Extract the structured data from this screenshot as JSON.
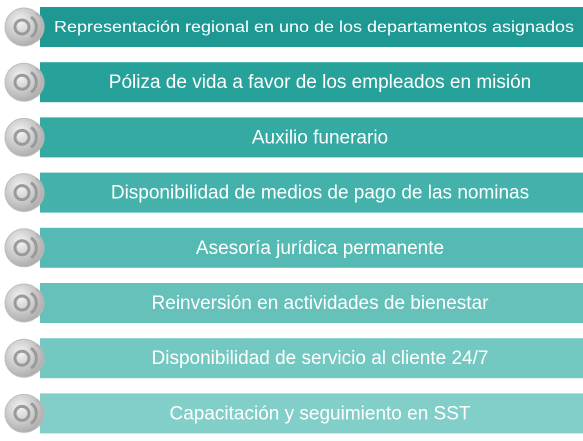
{
  "items": [
    "Representación regional en uno de los departamentos asignados",
    "Póliza de vida a favor de los empleados en misión",
    "Auxilio funerario",
    "Disponibilidad de medios de pago de las nominas",
    "Asesoría jurídica permanente",
    "Reinversión en actividades de bienestar",
    "Disponibilidad de servicio al cliente  24/7",
    "Capacitación y seguimiento en SST"
  ]
}
